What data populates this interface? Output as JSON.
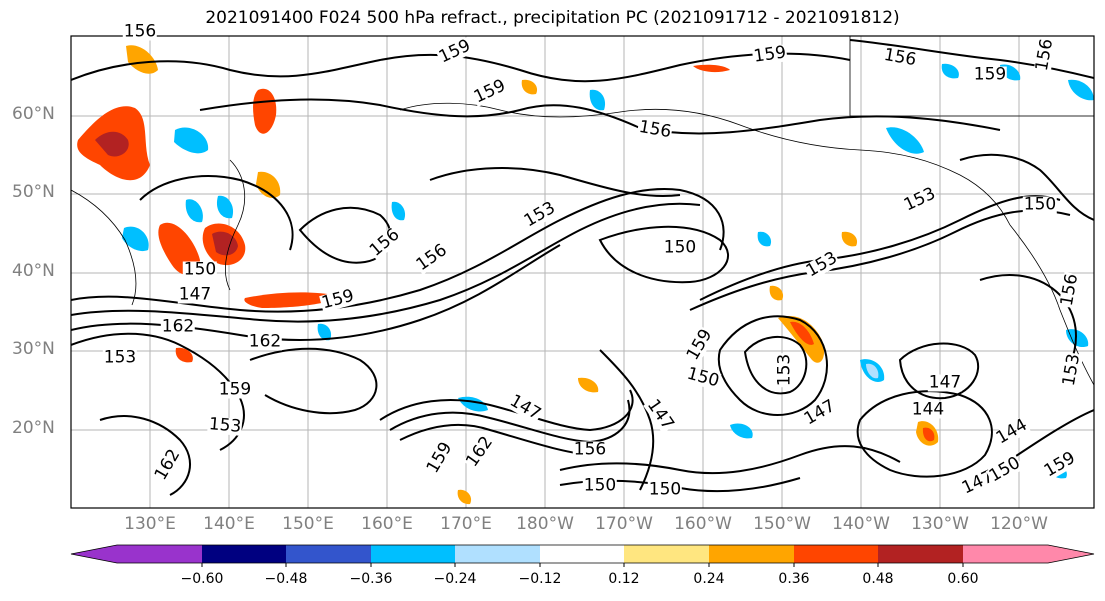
{
  "title": "2021091400 F024 500 hPa refract., precipitation PC (2021091712 - 2021091812)",
  "lat_labels": [
    "60°N",
    "50°N",
    "40°N",
    "30°N",
    "20°N"
  ],
  "lon_labels": [
    "130°E",
    "140°E",
    "150°E",
    "160°E",
    "170°E",
    "180°W",
    "170°W",
    "160°W",
    "150°W",
    "140°W",
    "130°W",
    "120°W"
  ],
  "contour_labels": [
    "156",
    "159",
    "159",
    "156",
    "156",
    "159",
    "159",
    "156",
    "153",
    "156",
    "150",
    "156",
    "153",
    "159",
    "150",
    "147",
    "162",
    "162",
    "159",
    "153",
    "150",
    "147",
    "156",
    "147",
    "162",
    "159",
    "162",
    "150",
    "153",
    "147",
    "144",
    "147",
    "144",
    "147",
    "150",
    "153",
    "150",
    "156",
    "153",
    "159",
    "153",
    "150",
    "159"
  ],
  "colorbar": {
    "ticks": [
      "−0.60",
      "−0.48",
      "−0.36",
      "−0.24",
      "−0.12",
      "0.12",
      "0.24",
      "0.36",
      "0.48",
      "0.60"
    ],
    "colors": [
      "#9933cc",
      "#000080",
      "#3355cc",
      "#00bfff",
      "#b0e0ff",
      "#ffffff",
      "#ffe680",
      "#ffa500",
      "#ff4500",
      "#b22222",
      "#ff88aa"
    ]
  }
}
